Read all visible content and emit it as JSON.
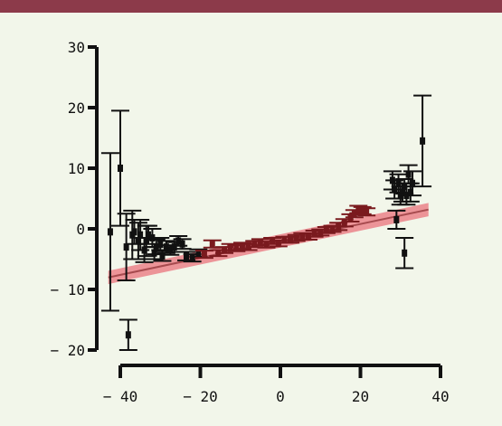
{
  "colors": {
    "top_bar": "#8c3a4a",
    "background": "#f2f6ea",
    "axis": "#111111",
    "data": "#111111",
    "fit_band": "#e9737c",
    "fit_line": "#7a1a1e"
  },
  "chart_data": {
    "type": "scatter",
    "title": "",
    "xlabel": "",
    "ylabel": "",
    "xlim": [
      -40,
      40
    ],
    "ylim": [
      -20,
      30
    ],
    "x_ticks": [
      -40,
      -20,
      0,
      20,
      40
    ],
    "y_ticks": [
      -20,
      -10,
      0,
      10,
      20,
      30
    ],
    "x_tick_labels": [
      "− 40",
      "− 20",
      "0",
      "20",
      "40"
    ],
    "y_tick_labels": [
      "− 20",
      "− 10",
      "0",
      "10",
      "20",
      "30"
    ],
    "grid": false,
    "fit": {
      "slope": 0.14,
      "intercept": -2.0,
      "x_range": [
        -43,
        37
      ],
      "band_halfwidth": 1.1
    },
    "points": [
      {
        "x": -42.5,
        "y": -0.5,
        "err": 13.0
      },
      {
        "x": -40.0,
        "y": 10.0,
        "err": 9.5
      },
      {
        "x": -38.5,
        "y": -3.0,
        "err": 5.5
      },
      {
        "x": -38.0,
        "y": -17.5,
        "err": 2.5
      },
      {
        "x": -37.0,
        "y": -1.0,
        "err": 4.0
      },
      {
        "x": -36.5,
        "y": -0.5,
        "err": 2.0
      },
      {
        "x": -35.5,
        "y": -2.0,
        "err": 3.0
      },
      {
        "x": -35.0,
        "y": -1.0,
        "err": 2.5
      },
      {
        "x": -34.0,
        "y": -3.5,
        "err": 2.0
      },
      {
        "x": -33.5,
        "y": -2.0,
        "err": 2.5
      },
      {
        "x": -33.0,
        "y": -1.0,
        "err": 1.5
      },
      {
        "x": -32.0,
        "y": -1.5,
        "err": 1.5
      },
      {
        "x": -31.5,
        "y": -4.0,
        "err": 1.0
      },
      {
        "x": -31.0,
        "y": -3.0,
        "err": 1.2
      },
      {
        "x": -30.0,
        "y": -2.5,
        "err": 1.0
      },
      {
        "x": -29.5,
        "y": -4.5,
        "err": 0.8
      },
      {
        "x": -28.5,
        "y": -3.0,
        "err": 1.0
      },
      {
        "x": -27.5,
        "y": -3.5,
        "err": 0.8
      },
      {
        "x": -26.5,
        "y": -3.0,
        "err": 0.8
      },
      {
        "x": -25.5,
        "y": -2.0,
        "err": 0.8
      },
      {
        "x": -24.5,
        "y": -2.5,
        "err": 0.8
      },
      {
        "x": -23.5,
        "y": -4.5,
        "err": 0.7
      },
      {
        "x": -22.0,
        "y": -4.8,
        "err": 0.6
      },
      {
        "x": -20.5,
        "y": -4.0,
        "err": 0.6
      },
      {
        "x": -19.0,
        "y": -4.2,
        "err": 0.6
      },
      {
        "x": -17.0,
        "y": -2.5,
        "err": 0.6
      },
      {
        "x": -15.5,
        "y": -4.0,
        "err": 0.5
      },
      {
        "x": -14.0,
        "y": -3.5,
        "err": 0.5
      },
      {
        "x": -12.5,
        "y": -3.0,
        "err": 0.5
      },
      {
        "x": -11.0,
        "y": -3.2,
        "err": 0.5
      },
      {
        "x": -9.5,
        "y": -2.8,
        "err": 0.5
      },
      {
        "x": -8.0,
        "y": -3.0,
        "err": 0.5
      },
      {
        "x": -6.5,
        "y": -2.5,
        "err": 0.5
      },
      {
        "x": -5.0,
        "y": -2.2,
        "err": 0.5
      },
      {
        "x": -3.5,
        "y": -2.6,
        "err": 0.5
      },
      {
        "x": -2.0,
        "y": -2.0,
        "err": 0.5
      },
      {
        "x": -0.5,
        "y": -2.4,
        "err": 0.5
      },
      {
        "x": 1.0,
        "y": -1.8,
        "err": 0.5
      },
      {
        "x": 2.5,
        "y": -1.8,
        "err": 0.5
      },
      {
        "x": 4.0,
        "y": -1.5,
        "err": 0.5
      },
      {
        "x": 5.5,
        "y": -1.2,
        "err": 0.5
      },
      {
        "x": 7.0,
        "y": -1.3,
        "err": 0.5
      },
      {
        "x": 8.5,
        "y": -0.8,
        "err": 0.5
      },
      {
        "x": 10.0,
        "y": -0.6,
        "err": 0.5
      },
      {
        "x": 11.5,
        "y": -0.2,
        "err": 0.5
      },
      {
        "x": 13.0,
        "y": 0.0,
        "err": 0.5
      },
      {
        "x": 14.5,
        "y": 0.4,
        "err": 0.6
      },
      {
        "x": 16.0,
        "y": 1.0,
        "err": 0.6
      },
      {
        "x": 17.5,
        "y": 1.8,
        "err": 0.6
      },
      {
        "x": 18.5,
        "y": 2.5,
        "err": 0.6
      },
      {
        "x": 19.5,
        "y": 3.2,
        "err": 0.6
      },
      {
        "x": 20.5,
        "y": 3.0,
        "err": 0.6
      },
      {
        "x": 21.5,
        "y": 2.8,
        "err": 0.6
      },
      {
        "x": 28.0,
        "y": 8.0,
        "err": 1.5
      },
      {
        "x": 28.5,
        "y": 6.5,
        "err": 1.5
      },
      {
        "x": 29.5,
        "y": 7.5,
        "err": 1.5
      },
      {
        "x": 30.0,
        "y": 5.5,
        "err": 1.5
      },
      {
        "x": 30.5,
        "y": 6.0,
        "err": 1.5
      },
      {
        "x": 31.0,
        "y": 7.0,
        "err": 1.2
      },
      {
        "x": 31.5,
        "y": 5.5,
        "err": 1.5
      },
      {
        "x": 32.0,
        "y": 9.0,
        "err": 1.5
      },
      {
        "x": 32.5,
        "y": 6.0,
        "err": 1.5
      },
      {
        "x": 33.0,
        "y": 7.5,
        "err": 2.0
      },
      {
        "x": 29.0,
        "y": 1.5,
        "err": 1.5
      },
      {
        "x": 31.0,
        "y": -4.0,
        "err": 2.5
      },
      {
        "x": 35.5,
        "y": 14.5,
        "err": 7.5
      }
    ]
  }
}
